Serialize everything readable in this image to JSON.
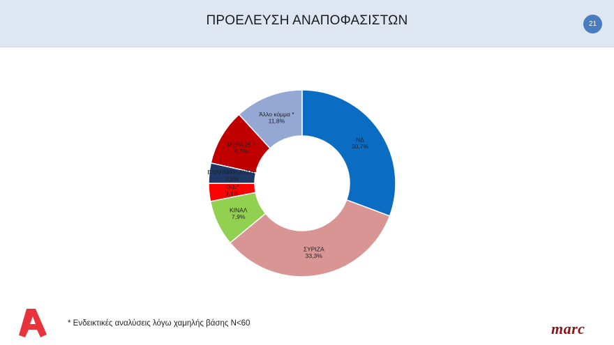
{
  "header": {
    "title": "ΠΡΟΕΛΕΥΣΗ ΑΝΑΠΟΦΑΣΙΣΤΩΝ",
    "page_number": "21"
  },
  "footer": {
    "footnote": "* Ενδεικτικές αναλύσεις λόγω χαμηλής βάσης Ν<60",
    "left_logo": "alpha-logo",
    "right_logo": "marc"
  },
  "colors": {
    "header_bg": "#dde6f1",
    "badge": "#4a7cc0",
    "alpha_red": "#e8333c",
    "marc_red": "#8b1518"
  },
  "chart_data": {
    "type": "pie",
    "subtype": "donut",
    "title": "ΠΡΟΕΛΕΥΣΗ ΑΝΑΠΟΦΑΣΙΣΤΩΝ",
    "start_angle": "12 o'clock, clockwise",
    "categories": [
      "ΝΔ",
      "ΣΥΡΙΖΑ",
      "ΚΙΝΑΛ",
      "ΚΚΕ*",
      "ΕΛΛΗΝΙΚΗ ΛΥΣΗ*",
      "ΜΕΡΑ 25 *",
      "Άλλο κόμμα *"
    ],
    "values": [
      30.7,
      33.3,
      7.9,
      3.1,
      3.5,
      9.7,
      11.8
    ],
    "value_labels": [
      "30,7%",
      "33,3%",
      "7,9%",
      "3,1%",
      "3,5%",
      "9,7%",
      "11,8%"
    ],
    "colors": [
      "#0a6cc2",
      "#d99594",
      "#92d050",
      "#ff0000",
      "#1f3864",
      "#c00000",
      "#94a8d3"
    ],
    "legend": "none (data labels inside slices)",
    "unit": "%"
  }
}
